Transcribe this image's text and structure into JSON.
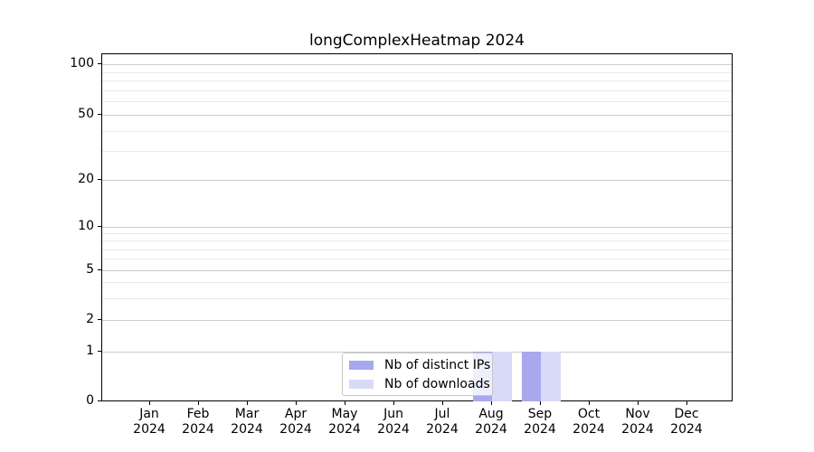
{
  "chart_data": {
    "type": "bar",
    "title": "longComplexHeatmap 2024",
    "categories": [
      "Jan",
      "Feb",
      "Mar",
      "Apr",
      "May",
      "Jun",
      "Jul",
      "Aug",
      "Sep",
      "Oct",
      "Nov",
      "Dec"
    ],
    "year": "2024",
    "series": [
      {
        "name": "Nb of distinct IPs",
        "color": "#a8a8ef",
        "values": [
          0,
          0,
          0,
          0,
          0,
          0,
          0,
          1,
          1,
          0,
          0,
          0
        ]
      },
      {
        "name": "Nb of downloads",
        "color": "#d9d9f8",
        "values": [
          0,
          0,
          0,
          0,
          0,
          0,
          0,
          1,
          1,
          0,
          0,
          0
        ]
      }
    ],
    "yscale": "symlog",
    "ylim": [
      0,
      110
    ],
    "yticks_major": [
      0,
      1,
      2,
      5,
      10,
      20,
      50,
      100
    ],
    "yticks_minor": [
      3,
      4,
      6,
      7,
      8,
      9,
      30,
      40,
      60,
      70,
      80,
      90
    ],
    "grid": "horizontal",
    "legend_position": "lower center"
  }
}
